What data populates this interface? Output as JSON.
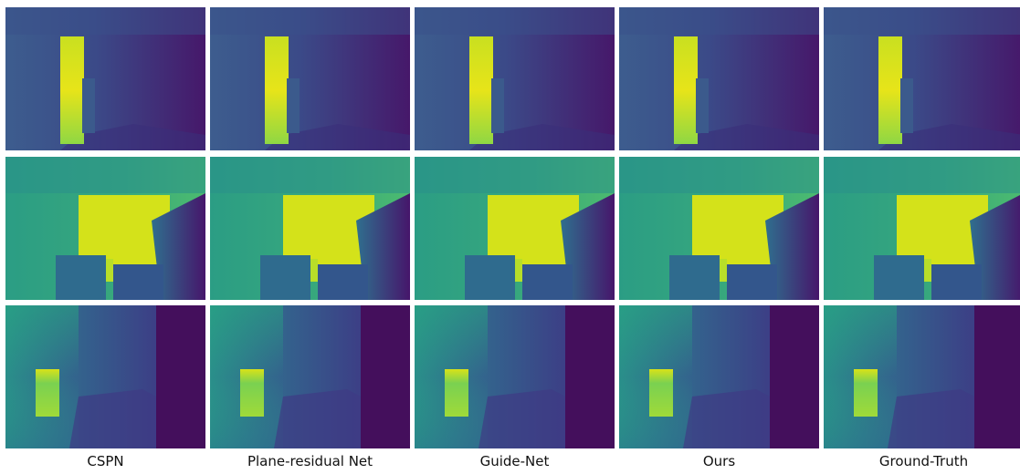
{
  "columns": [
    "CSPN",
    "Plane-residual Net",
    "Guide-Net",
    "Ours",
    "Ground-Truth"
  ]
}
